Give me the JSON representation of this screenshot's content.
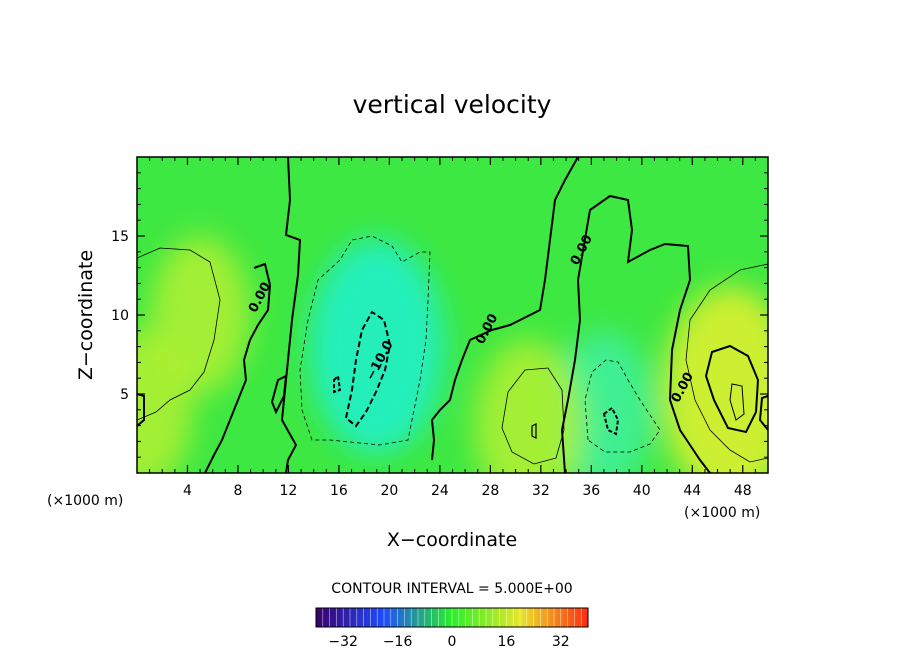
{
  "chart_data": {
    "type": "heatmap",
    "title": "vertical velocity",
    "xlabel": "X−coordinate",
    "ylabel": "Z−coordinate",
    "x_unit": "(×1000 m)",
    "x_ticks": [
      4,
      8,
      12,
      16,
      20,
      24,
      28,
      32,
      36,
      40,
      44,
      48
    ],
    "y_ticks": [
      5,
      10,
      15
    ],
    "xlim": [
      0,
      50
    ],
    "ylim": [
      0,
      20
    ],
    "contour_interval_text": "CONTOUR INTERVAL = 5.000E+00",
    "contour_labels": [
      {
        "text": "0.00",
        "x": 10,
        "y": 11
      },
      {
        "text": "0.00",
        "x": 28,
        "y": 9
      },
      {
        "text": "0.00",
        "x": 35.5,
        "y": 14
      },
      {
        "text": "0.00",
        "x": 43.5,
        "y": 5.3
      },
      {
        "text": "−10.0",
        "x": 19.5,
        "y": 7
      }
    ],
    "colorbar": {
      "ticks": [
        "−32",
        "−16",
        "0",
        "16",
        "32"
      ],
      "tick_values": [
        -32,
        -16,
        0,
        16,
        32
      ],
      "range": [
        -40,
        40
      ],
      "colors": {
        "low": "#3a006a",
        "neg": "#1e4cff",
        "zero": "#28f028",
        "pos": "#e8e628",
        "high": "#ff2a10"
      }
    },
    "features": [
      {
        "kind": "downdraft",
        "x": 19,
        "z": 8,
        "w": -11
      },
      {
        "kind": "downdraft",
        "x": 37,
        "z": 4,
        "w": -7
      },
      {
        "kind": "updraft",
        "x": 5,
        "z": 10,
        "w": 7
      },
      {
        "kind": "updraft",
        "x": 31,
        "z": 3,
        "w": 8
      },
      {
        "kind": "updraft",
        "x": 47,
        "z": 5,
        "w": 11
      },
      {
        "kind": "updraft",
        "x": 0.5,
        "z": 4,
        "w": 7
      }
    ]
  }
}
